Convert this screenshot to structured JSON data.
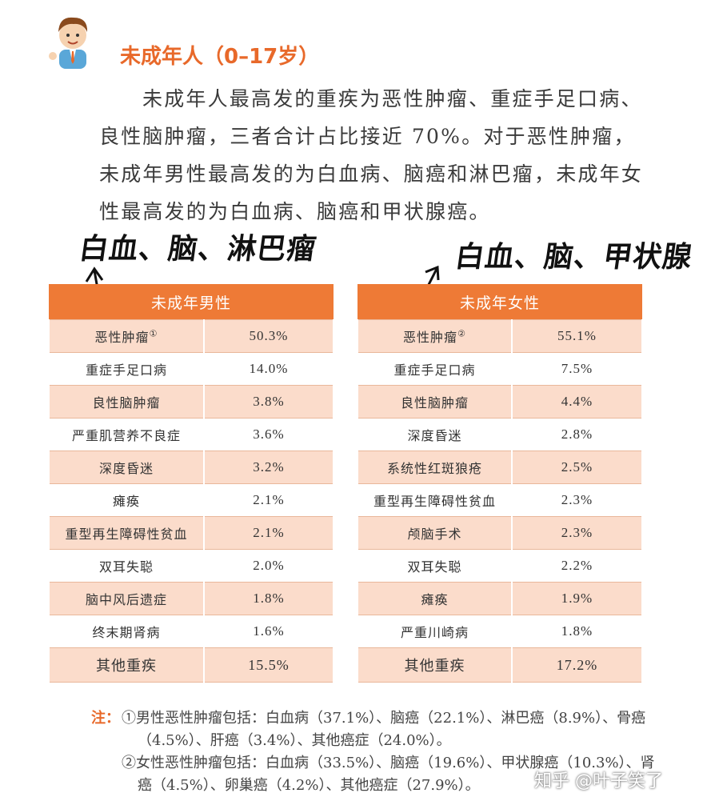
{
  "header": {
    "title": "未成年人（0–17岁）"
  },
  "paragraph": "未成年人最高发的重疾为恶性肿瘤、重症手足口病、良性脑肿瘤，三者合计占比接近 70%。对于恶性肿瘤，未成年男性最高发的为白血病、脑癌和淋巴瘤，未成年女性最高发的为白血病、脑癌和甲状腺癌。",
  "annotations": [
    "白血、脑、淋巴瘤",
    "白血、脑、甲状腺"
  ],
  "tables": [
    {
      "title": "未成年男性",
      "rows": [
        [
          "恶性肿瘤",
          "50.3%",
          "①"
        ],
        [
          "重症手足口病",
          "14.0%"
        ],
        [
          "良性脑肿瘤",
          "3.8%"
        ],
        [
          "严重肌营养不良症",
          "3.6%"
        ],
        [
          "深度昏迷",
          "3.2%"
        ],
        [
          "瘫痪",
          "2.1%"
        ],
        [
          "重型再生障碍性贫血",
          "2.1%"
        ],
        [
          "双耳失聪",
          "2.0%"
        ],
        [
          "脑中风后遗症",
          "1.8%"
        ],
        [
          "终末期肾病",
          "1.6%"
        ],
        [
          "其他重疾",
          "15.5%"
        ]
      ]
    },
    {
      "title": "未成年女性",
      "rows": [
        [
          "恶性肿瘤",
          "55.1%",
          "②"
        ],
        [
          "重症手足口病",
          "7.5%"
        ],
        [
          "良性脑肿瘤",
          "4.4%"
        ],
        [
          "深度昏迷",
          "2.8%"
        ],
        [
          "系统性红斑狼疮",
          "2.5%"
        ],
        [
          "重型再生障碍性贫血",
          "2.3%"
        ],
        [
          "颅脑手术",
          "2.3%"
        ],
        [
          "双耳失聪",
          "2.2%"
        ],
        [
          "瘫痪",
          "1.9%"
        ],
        [
          "严重川崎病",
          "1.8%"
        ],
        [
          "其他重疾",
          "17.2%"
        ]
      ]
    }
  ],
  "note_label": "注：",
  "notes": [
    "①男性恶性肿瘤包括：白血病（37.1%）、脑癌（22.1%）、淋巴癌（8.9%）、骨癌（4.5%）、肝癌（3.4%）、其他癌症（24.0%）。",
    "②女性恶性肿瘤包括：白血病（33.5%）、脑癌（19.6%）、甲状腺癌（10.3%）、肾癌（4.5%）、卵巢癌（4.2%）、其他癌症（27.9%）。"
  ],
  "watermark": "知乎 @叶子笑了"
}
